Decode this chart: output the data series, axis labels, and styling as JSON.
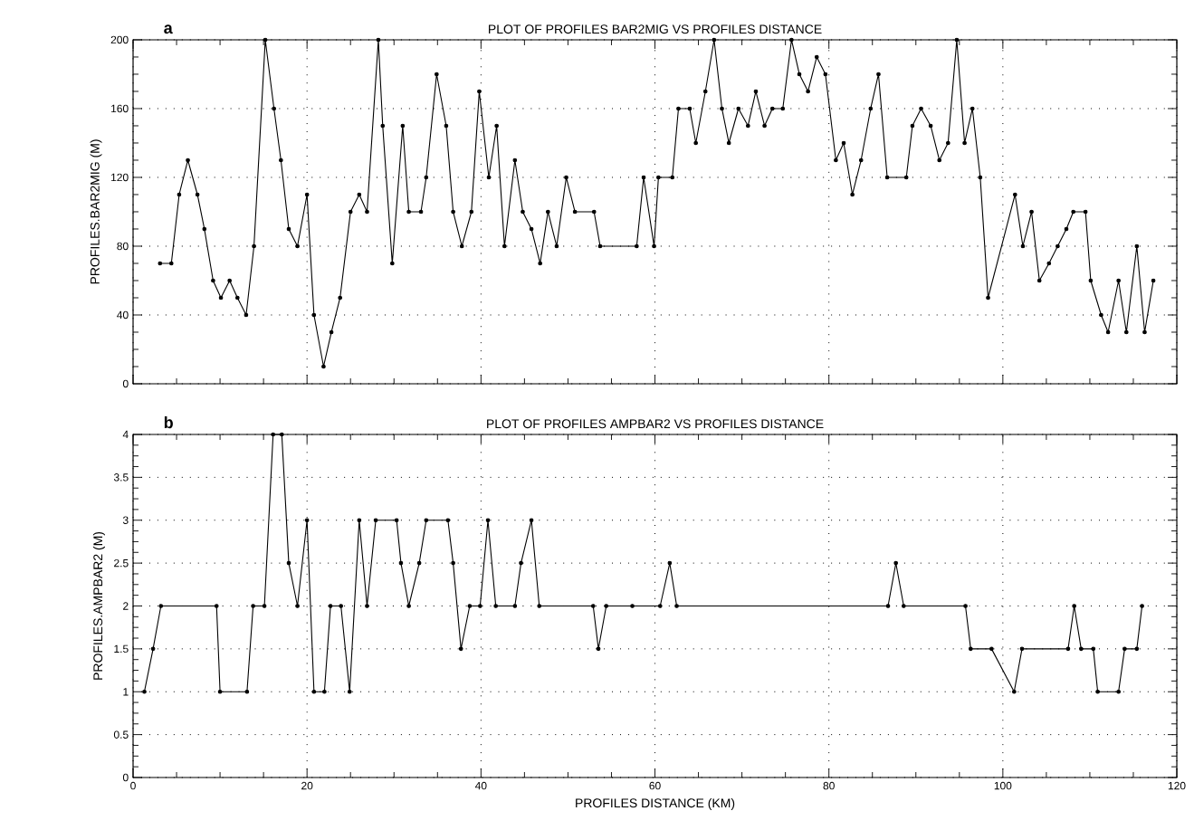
{
  "chart_data": [
    {
      "type": "line",
      "title": "PLOT OF PROFILES BAR2MIG VS PROFILES DISTANCE",
      "ylabel": "PROFILES.BAR2MIG (M)",
      "annotations": [
        "a"
      ],
      "x": [
        3.1,
        4.4,
        5.3,
        6.3,
        7.4,
        8.2,
        9.2,
        10.1,
        11.1,
        12.0,
        13.0,
        13.9,
        15.2,
        16.2,
        17.0,
        17.9,
        18.9,
        20.0,
        20.8,
        21.9,
        22.8,
        23.8,
        25.0,
        26.0,
        26.9,
        28.2,
        28.7,
        29.8,
        31.0,
        31.7,
        33.1,
        33.7,
        34.9,
        36.0,
        36.8,
        37.8,
        38.9,
        39.8,
        40.9,
        41.8,
        42.7,
        43.9,
        44.8,
        45.8,
        46.8,
        47.7,
        48.7,
        49.8,
        50.8,
        53.0,
        53.7,
        57.9,
        58.7,
        59.9,
        60.4,
        62.0,
        62.7,
        64.0,
        64.7,
        65.8,
        66.8,
        67.7,
        68.5,
        69.6,
        70.7,
        71.6,
        72.6,
        73.5,
        74.7,
        75.7,
        76.6,
        77.6,
        78.6,
        79.6,
        80.8,
        81.7,
        82.7,
        83.7,
        84.8,
        85.7,
        86.7,
        88.9,
        89.6,
        90.6,
        91.7,
        92.7,
        93.7,
        94.7,
        95.6,
        96.5,
        97.4,
        98.3,
        101.4,
        102.3,
        103.3,
        104.2,
        105.3,
        106.3,
        107.3,
        108.1,
        109.5,
        110.1,
        111.3,
        112.1,
        113.3,
        114.2,
        115.4,
        116.3,
        117.3
      ],
      "series": [
        {
          "color": "#000000",
          "values": [
            70,
            70,
            110,
            130,
            110,
            90,
            60,
            50,
            60,
            50,
            40,
            80,
            200,
            160,
            130,
            90,
            80,
            110,
            40,
            10,
            30,
            50,
            100,
            110,
            100,
            200,
            150,
            70,
            150,
            100,
            100,
            120,
            180,
            150,
            100,
            80,
            100,
            170,
            120,
            150,
            80,
            130,
            100,
            90,
            70,
            100,
            80,
            120,
            100,
            100,
            80,
            80,
            120,
            80,
            120,
            120,
            160,
            160,
            140,
            170,
            200,
            160,
            140,
            160,
            150,
            170,
            150,
            160,
            160,
            200,
            180,
            170,
            190,
            180,
            130,
            140,
            110,
            130,
            160,
            180,
            120,
            120,
            150,
            160,
            150,
            130,
            140,
            200,
            140,
            160,
            120,
            50,
            110,
            80,
            100,
            60,
            70,
            80,
            90,
            100,
            100,
            60,
            40,
            30,
            60,
            30,
            80,
            30,
            60
          ]
        }
      ],
      "xlim": [
        0,
        120
      ],
      "xticks": [
        0,
        20,
        40,
        60,
        80,
        100,
        120
      ],
      "ylim": [
        0,
        200
      ],
      "yticks": [
        0,
        40,
        80,
        120,
        160,
        200
      ],
      "tick_labels": "y",
      "grid": true,
      "marker": "circle",
      "line_style": "solid"
    },
    {
      "type": "line",
      "title": "PLOT OF PROFILES AMPBAR2 VS PROFILES DISTANCE",
      "xlabel": "PROFILES DISTANCE (KM)",
      "ylabel": "PROFILES.AMPBAR2 (M)",
      "annotations": [
        "b"
      ],
      "x": [
        1.3,
        2.3,
        3.2,
        9.6,
        10.0,
        13.1,
        13.8,
        15.1,
        16.1,
        17.1,
        17.9,
        18.9,
        20.0,
        20.8,
        22.0,
        22.7,
        23.9,
        24.9,
        26.0,
        26.9,
        27.9,
        30.3,
        30.8,
        31.7,
        32.9,
        33.7,
        36.2,
        36.8,
        37.7,
        38.7,
        39.9,
        40.8,
        41.7,
        43.9,
        44.6,
        45.8,
        46.7,
        52.9,
        53.5,
        54.4,
        57.4,
        60.6,
        61.7,
        62.5,
        86.8,
        87.7,
        88.6,
        95.7,
        96.3,
        98.7,
        101.3,
        102.2,
        107.5,
        108.2,
        109.0,
        110.4,
        110.9,
        113.3,
        114.0,
        115.4,
        116.0
      ],
      "series": [
        {
          "color": "#000000",
          "values": [
            1,
            1.5,
            2,
            2,
            1,
            1,
            2,
            2,
            4,
            4,
            2.5,
            2,
            3,
            1,
            1,
            2,
            2,
            1,
            3,
            2,
            3,
            3,
            2.5,
            2,
            2.5,
            3,
            3,
            2.5,
            1.5,
            2,
            2,
            3,
            2,
            2,
            2.5,
            3,
            2,
            2,
            1.5,
            2,
            2,
            2,
            2.5,
            2,
            2,
            2.5,
            2,
            2,
            1.5,
            1.5,
            1,
            1.5,
            1.5,
            2,
            1.5,
            1.5,
            1,
            1,
            1.5,
            1.5,
            2
          ]
        }
      ],
      "xlim": [
        0,
        120
      ],
      "xticks": [
        0,
        20,
        40,
        60,
        80,
        100,
        120
      ],
      "ylim": [
        0,
        4
      ],
      "yticks": [
        0,
        0.5,
        1,
        1.5,
        2,
        2.5,
        3,
        3.5,
        4
      ],
      "grid": true,
      "marker": "circle",
      "line_style": "solid"
    }
  ]
}
